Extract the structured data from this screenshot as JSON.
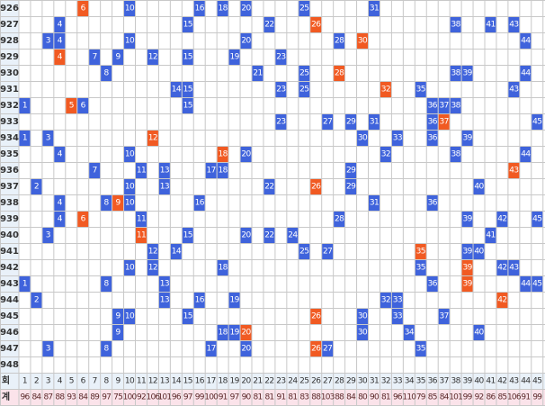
{
  "rounds": [
    {
      "round": "926",
      "numbers": [
        10,
        16,
        18,
        20,
        25,
        31
      ],
      "bonus": 6
    },
    {
      "round": "927",
      "numbers": [
        4,
        15,
        22,
        38,
        41,
        43
      ],
      "bonus": 26
    },
    {
      "round": "928",
      "numbers": [
        3,
        4,
        10,
        20,
        28,
        44
      ],
      "bonus": 30
    },
    {
      "round": "929",
      "numbers": [
        7,
        9,
        12,
        15,
        19,
        23
      ],
      "bonus": 4
    },
    {
      "round": "930",
      "numbers": [
        8,
        21,
        25,
        38,
        39,
        44
      ],
      "bonus": 28
    },
    {
      "round": "931",
      "numbers": [
        14,
        15,
        23,
        25,
        35,
        43
      ],
      "bonus": 32
    },
    {
      "round": "932",
      "numbers": [
        1,
        6,
        15,
        36,
        37,
        38
      ],
      "bonus": 5
    },
    {
      "round": "933",
      "numbers": [
        23,
        27,
        29,
        31,
        36,
        45
      ],
      "bonus": 37
    },
    {
      "round": "934",
      "numbers": [
        1,
        3,
        30,
        33,
        36,
        39
      ],
      "bonus": 12
    },
    {
      "round": "935",
      "numbers": [
        4,
        10,
        20,
        32,
        38,
        44
      ],
      "bonus": 18
    },
    {
      "round": "936",
      "numbers": [
        7,
        11,
        13,
        17,
        18,
        29
      ],
      "bonus": 43
    },
    {
      "round": "937",
      "numbers": [
        2,
        10,
        13,
        22,
        29,
        40
      ],
      "bonus": 26
    },
    {
      "round": "938",
      "numbers": [
        4,
        8,
        10,
        16,
        31,
        36
      ],
      "bonus": 9
    },
    {
      "round": "939",
      "numbers": [
        4,
        11,
        28,
        39,
        42,
        45
      ],
      "bonus": 6
    },
    {
      "round": "940",
      "numbers": [
        3,
        15,
        20,
        22,
        24,
        41
      ],
      "bonus": 11
    },
    {
      "round": "941",
      "numbers": [
        12,
        14,
        25,
        27,
        39,
        40
      ],
      "bonus": 35
    },
    {
      "round": "942",
      "numbers": [
        10,
        12,
        18,
        35,
        42,
        43
      ],
      "bonus": 39
    },
    {
      "round": "943",
      "numbers": [
        1,
        8,
        13,
        36,
        44,
        45
      ],
      "bonus": 39
    },
    {
      "round": "944",
      "numbers": [
        2,
        13,
        16,
        19,
        32,
        33
      ],
      "bonus": 42
    },
    {
      "round": "945",
      "numbers": [
        9,
        10,
        15,
        30,
        33,
        37
      ],
      "bonus": 26
    },
    {
      "round": "946",
      "numbers": [
        9,
        18,
        19,
        30,
        34,
        40
      ],
      "bonus": 20
    },
    {
      "round": "947",
      "numbers": [
        3,
        8,
        17,
        20,
        27,
        35
      ],
      "bonus": 26
    },
    {
      "round": "948",
      "numbers": []
    }
  ],
  "footer": {
    "round_label": "회",
    "numbers": [
      1,
      2,
      3,
      4,
      5,
      6,
      7,
      8,
      9,
      10,
      11,
      12,
      13,
      14,
      15,
      16,
      17,
      18,
      19,
      20,
      21,
      22,
      23,
      24,
      25,
      26,
      27,
      28,
      29,
      30,
      31,
      32,
      33,
      34,
      35,
      36,
      37,
      38,
      39,
      40,
      41,
      42,
      43,
      44,
      45
    ],
    "total_label": "계",
    "totals": [
      96,
      84,
      87,
      88,
      93,
      84,
      89,
      97,
      75,
      100,
      92,
      106,
      101,
      96,
      97,
      99,
      100,
      91,
      97,
      90,
      81,
      81,
      91,
      81,
      83,
      88,
      103,
      88,
      84,
      80,
      90,
      81,
      96,
      110,
      79,
      85,
      84,
      101,
      99,
      92,
      86,
      85,
      106,
      91,
      99
    ]
  }
}
